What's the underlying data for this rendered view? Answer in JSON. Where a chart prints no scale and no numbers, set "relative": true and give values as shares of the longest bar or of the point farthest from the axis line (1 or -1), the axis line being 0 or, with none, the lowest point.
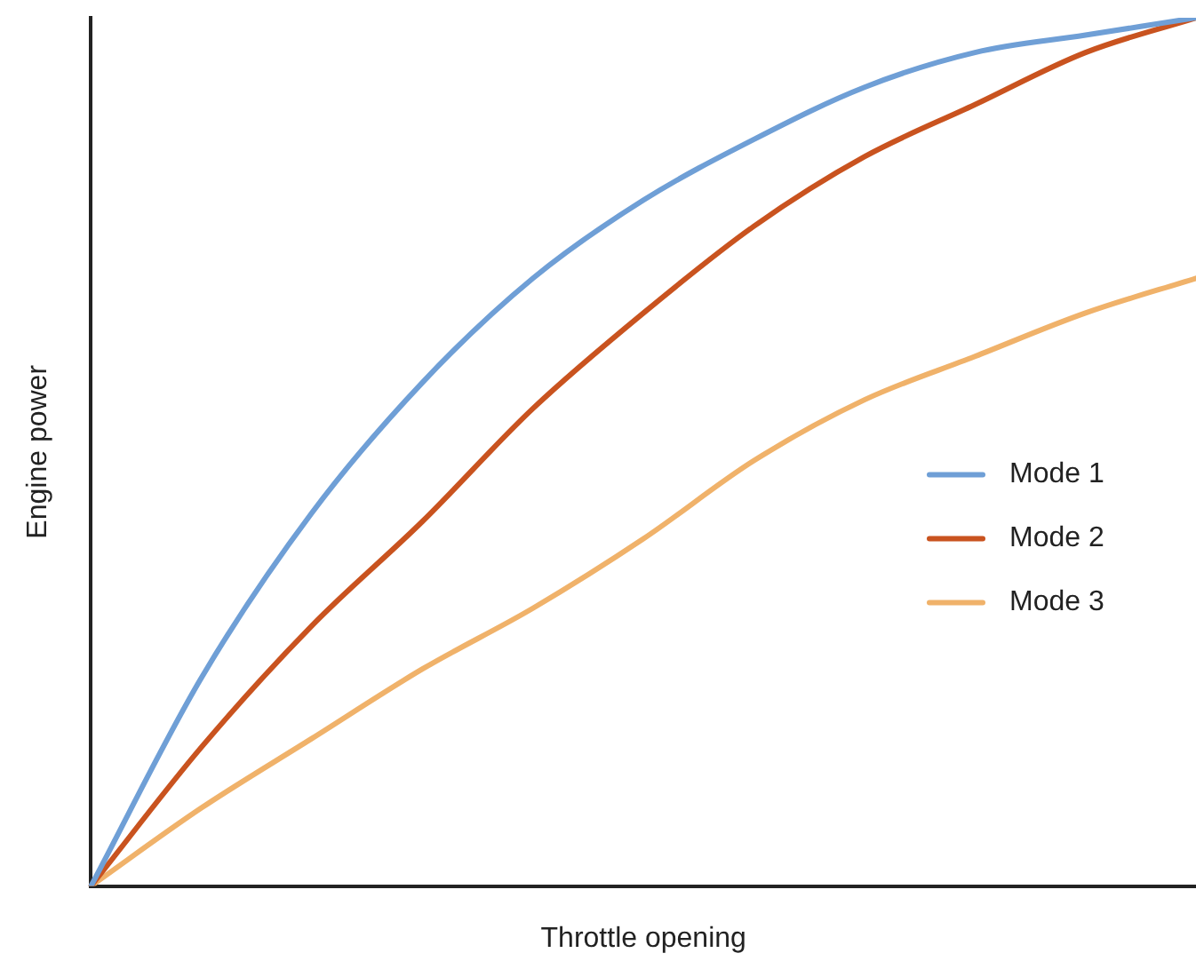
{
  "chart_data": {
    "type": "line",
    "relative": true,
    "xlabel": "Throttle opening",
    "ylabel": "Engine power",
    "legend": "right",
    "marker": "none",
    "line_style": "solid",
    "grid": false,
    "categories": [
      null,
      null,
      null,
      null,
      null,
      null,
      null,
      null,
      null,
      null,
      null
    ],
    "series": [
      {
        "name": "Mode 1",
        "color": "#6f9fd6",
        "values": [
          0,
          0.24,
          0.43,
          0.58,
          0.7,
          0.79,
          0.86,
          0.92,
          0.96,
          0.98,
          1
        ]
      },
      {
        "name": "Mode 2",
        "color": "#c9531f",
        "values": [
          0,
          0.16,
          0.3,
          0.42,
          0.55,
          0.66,
          0.76,
          0.84,
          0.9,
          0.96,
          1
        ]
      },
      {
        "name": "Mode 3",
        "color": "#f0b26a",
        "values": [
          0,
          0.09,
          0.17,
          0.25,
          0.32,
          0.4,
          0.49,
          0.56,
          0.61,
          0.66,
          0.7
        ]
      }
    ]
  }
}
